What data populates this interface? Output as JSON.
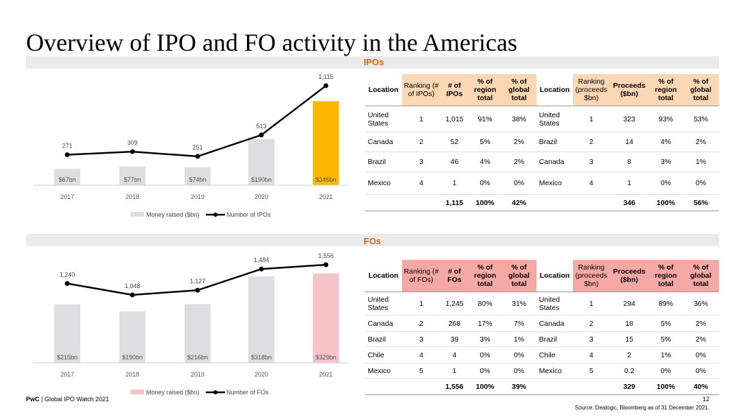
{
  "title": "Overview of IPO and FO activity in the Americas",
  "ipo": {
    "section_label": "IPOs",
    "chart_data": {
      "type": "bar",
      "categories": [
        "2017",
        "2018",
        "2019",
        "2020",
        "2021"
      ],
      "series": [
        {
          "name": "Money raised ($bn)",
          "values": [
            67,
            77,
            74,
            190,
            346
          ],
          "labels": [
            "$67bn",
            "$77bn",
            "$74bn",
            "$190bn",
            "$346bn"
          ]
        },
        {
          "name": "Number of IPOs",
          "values": [
            271,
            309,
            251,
            513,
            1115
          ],
          "labels": [
            "271",
            "309",
            "251",
            "513",
            "1,115"
          ]
        }
      ],
      "legend": [
        "Money raised ($bn)",
        "Number of IPOs"
      ]
    },
    "table": {
      "headers": [
        "Location",
        "Ranking (# of IPOs)",
        "# of IPOs",
        "% of region total",
        "% of global total",
        "Location",
        "Ranking (proceeds $bn)",
        "Proceeds ($bn)",
        "% of region total",
        "% of global total"
      ],
      "rows": [
        [
          "United States",
          "1",
          "1,015",
          "91%",
          "38%",
          "United States",
          "1",
          "323",
          "93%",
          "53%"
        ],
        [
          "Canada",
          "2",
          "52",
          "5%",
          "2%",
          "Brazil",
          "2",
          "14",
          "4%",
          "2%"
        ],
        [
          "Brazil",
          "3",
          "46",
          "4%",
          "2%",
          "Canada",
          "3",
          "8",
          "3%",
          "1%"
        ],
        [
          "Mexico",
          "4",
          "1",
          "0%",
          "0%",
          "Mexico",
          "4",
          "1",
          "0%",
          "0%"
        ]
      ],
      "total": [
        "",
        "",
        "1,115",
        "100%",
        "42%",
        "",
        "",
        "346",
        "100%",
        "56%"
      ]
    }
  },
  "fo": {
    "section_label": "FOs",
    "chart_data": {
      "type": "bar",
      "categories": [
        "2017",
        "2018",
        "2019",
        "2020",
        "2021"
      ],
      "series": [
        {
          "name": "Money raised ($bn)",
          "values": [
            215,
            190,
            216,
            318,
            329
          ],
          "labels": [
            "$215bn",
            "$190bn",
            "$216bn",
            "$318bn",
            "$329bn"
          ]
        },
        {
          "name": "Number of FOs",
          "values": [
            1240,
            1048,
            1127,
            1484,
            1556
          ],
          "labels": [
            "1,240",
            "1,048",
            "1,127",
            "1,484",
            "1,556"
          ]
        }
      ],
      "legend": [
        "Money raised ($bn)",
        "Number of FOs"
      ]
    },
    "table": {
      "headers": [
        "Location",
        "Ranking (# of FOs)",
        "# of FOs",
        "% of region total",
        "% of global total",
        "Location",
        "Ranking (proceeds $bn)",
        "Proceeds ($bn)",
        "% of region total",
        "% of global total"
      ],
      "rows": [
        [
          "United States",
          "1",
          "1,245",
          "80%",
          "31%",
          "United States",
          "1",
          "294",
          "89%",
          "36%"
        ],
        [
          "Canada",
          "2",
          "268",
          "17%",
          "7%",
          "Canada",
          "2",
          "18",
          "5%",
          "2%"
        ],
        [
          "Brazil",
          "3",
          "39",
          "3%",
          "1%",
          "Brazil",
          "3",
          "15",
          "5%",
          "2%"
        ],
        [
          "Chile",
          "4",
          "4",
          "0%",
          "0%",
          "Chile",
          "4",
          "2",
          "1%",
          "0%"
        ],
        [
          "Mexico",
          "5",
          "1",
          "0%",
          "0%",
          "Mexico",
          "5",
          "0.2",
          "0%",
          "0%"
        ]
      ],
      "total": [
        "",
        "",
        "1,556",
        "100%",
        "39%",
        "",
        "",
        "329",
        "100%",
        "40%"
      ]
    }
  },
  "footer": {
    "brand": "PwC",
    "text": " | Global IPO Watch 2021",
    "page": "12",
    "source": "Source: Dealogic, Bloomberg as of 31 December 2021."
  },
  "colors": {
    "accent": "#e0620d",
    "ipo_header": "#fbd7b3",
    "fo_header": "#f6a8a5",
    "ipo_highlight": "#ffb600",
    "fo_highlight": "#f6c3c6",
    "bar_grey": "#dedddf"
  }
}
